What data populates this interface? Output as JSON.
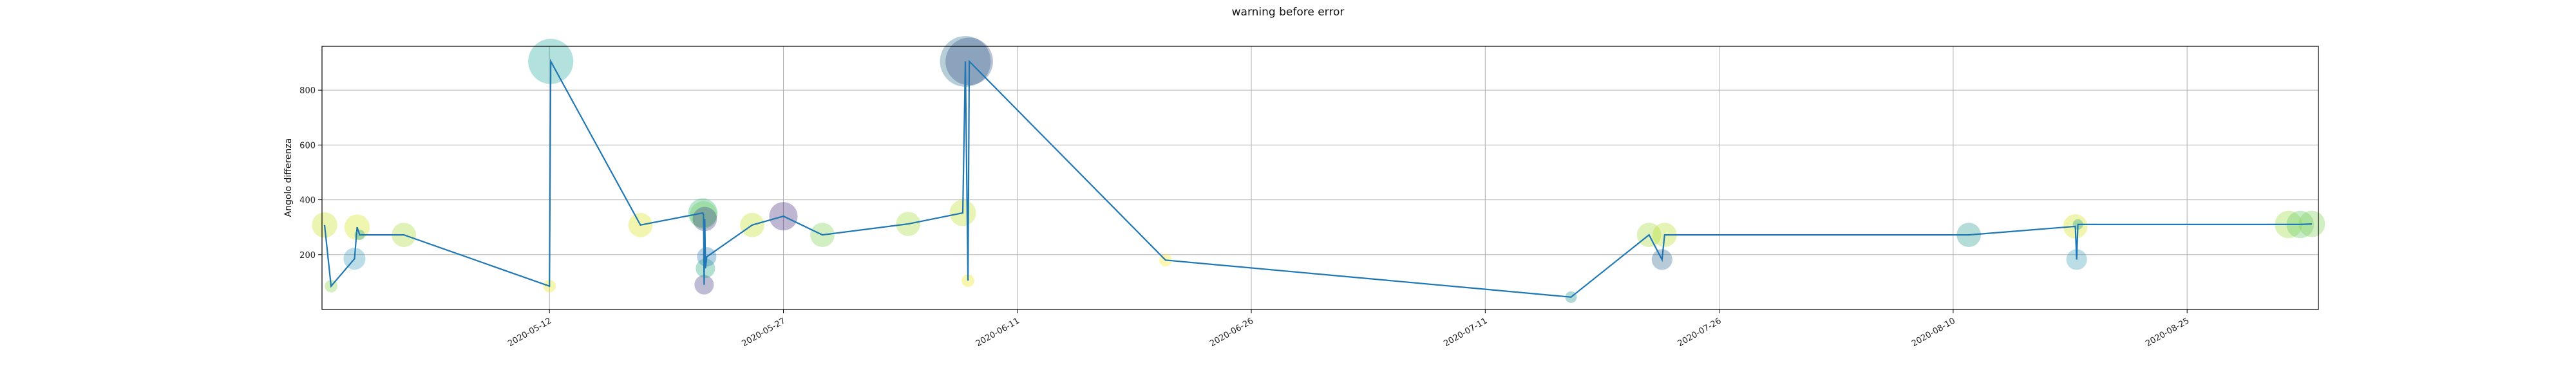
{
  "chart_data": {
    "type": "scatter",
    "title": "warning before error",
    "xlabel": "",
    "ylabel": "Angolo differenza",
    "xlim": [
      "2020-04-27T10:00",
      "2020-09-02T10:00"
    ],
    "ylim": [
      0,
      960
    ],
    "grid": true,
    "x_ticks": [
      "2020-05-12",
      "2020-05-27",
      "2020-06-11",
      "2020-06-26",
      "2020-07-11",
      "2020-07-26",
      "2020-08-10",
      "2020-08-25"
    ],
    "y_ticks": [
      200,
      400,
      600,
      800
    ],
    "line_color": "#1f77b4",
    "series": [
      {
        "points": [
          {
            "x": "2020-04-27T14:00",
            "y": 308,
            "size": 120,
            "color": "#c7e020"
          },
          {
            "x": "2020-04-28T00:00",
            "y": 85,
            "size": 30,
            "color": "#86d549"
          },
          {
            "x": "2020-04-29T12:00",
            "y": 185,
            "size": 90,
            "color": "#3e9fbd"
          },
          {
            "x": "2020-04-29T16:00",
            "y": 300,
            "size": 120,
            "color": "#d5e21a"
          },
          {
            "x": "2020-04-29T20:00",
            "y": 272,
            "size": 20,
            "color": "#1fa187"
          },
          {
            "x": "2020-05-02T16:00",
            "y": 272,
            "size": 110,
            "color": "#a8db34"
          },
          {
            "x": "2020-05-12T00:00",
            "y": 85,
            "size": 30,
            "color": "#e6e419"
          },
          {
            "x": "2020-05-12T02:00",
            "y": 905,
            "size": 380,
            "color": "#26a9a0"
          },
          {
            "x": "2020-05-17T20:00",
            "y": 308,
            "size": 110,
            "color": "#d8e219"
          },
          {
            "x": "2020-05-21T20:00",
            "y": 352,
            "size": 160,
            "color": "#35b779"
          },
          {
            "x": "2020-05-21T21:00",
            "y": 345,
            "size": 140,
            "color": "#6ccd5a"
          },
          {
            "x": "2020-05-21T22:00",
            "y": 90,
            "size": 70,
            "color": "#433e85"
          },
          {
            "x": "2020-05-21T23:00",
            "y": 330,
            "size": 110,
            "color": "#404588"
          },
          {
            "x": "2020-05-22T00:00",
            "y": 150,
            "size": 70,
            "color": "#22a884"
          },
          {
            "x": "2020-05-22T02:00",
            "y": 192,
            "size": 70,
            "color": "#2c7fb8"
          },
          {
            "x": "2020-05-25T00:00",
            "y": 308,
            "size": 110,
            "color": "#c2df23"
          },
          {
            "x": "2020-05-27T00:00",
            "y": 340,
            "size": 150,
            "color": "#472d7b"
          },
          {
            "x": "2020-05-29T12:00",
            "y": 272,
            "size": 110,
            "color": "#7ad151"
          },
          {
            "x": "2020-06-04T00:00",
            "y": 312,
            "size": 110,
            "color": "#a0da39"
          },
          {
            "x": "2020-06-07T12:00",
            "y": 352,
            "size": 130,
            "color": "#bddf26"
          },
          {
            "x": "2020-06-07T16:00",
            "y": 905,
            "size": 480,
            "color": "#2c728e"
          },
          {
            "x": "2020-06-07T20:00",
            "y": 105,
            "size": 30,
            "color": "#e6e419"
          },
          {
            "x": "2020-06-07T22:00",
            "y": 905,
            "size": 420,
            "color": "#3b528b"
          },
          {
            "x": "2020-06-20T12:00",
            "y": 180,
            "size": 30,
            "color": "#fde725"
          },
          {
            "x": "2020-07-16T12:00",
            "y": 45,
            "size": 25,
            "color": "#1f968b"
          },
          {
            "x": "2020-07-21T12:00",
            "y": 272,
            "size": 110,
            "color": "#a2da37"
          },
          {
            "x": "2020-07-22T08:00",
            "y": 182,
            "size": 80,
            "color": "#31688e"
          },
          {
            "x": "2020-07-22T12:00",
            "y": 272,
            "size": 110,
            "color": "#b5de2b"
          },
          {
            "x": "2020-08-11T00:00",
            "y": 272,
            "size": 110,
            "color": "#2a9d8f"
          },
          {
            "x": "2020-08-17T20:00",
            "y": 303,
            "size": 110,
            "color": "#d2e21b"
          },
          {
            "x": "2020-08-17T22:00",
            "y": 182,
            "size": 80,
            "color": "#3a9fb8"
          },
          {
            "x": "2020-08-18T00:00",
            "y": 310,
            "size": 20,
            "color": "#1fa187"
          },
          {
            "x": "2020-08-31T12:00",
            "y": 310,
            "size": 140,
            "color": "#9ad93c"
          },
          {
            "x": "2020-09-01T06:00",
            "y": 310,
            "size": 140,
            "color": "#5ec962"
          },
          {
            "x": "2020-09-02T00:00",
            "y": 312,
            "size": 130,
            "color": "#7ad151"
          }
        ]
      }
    ]
  }
}
